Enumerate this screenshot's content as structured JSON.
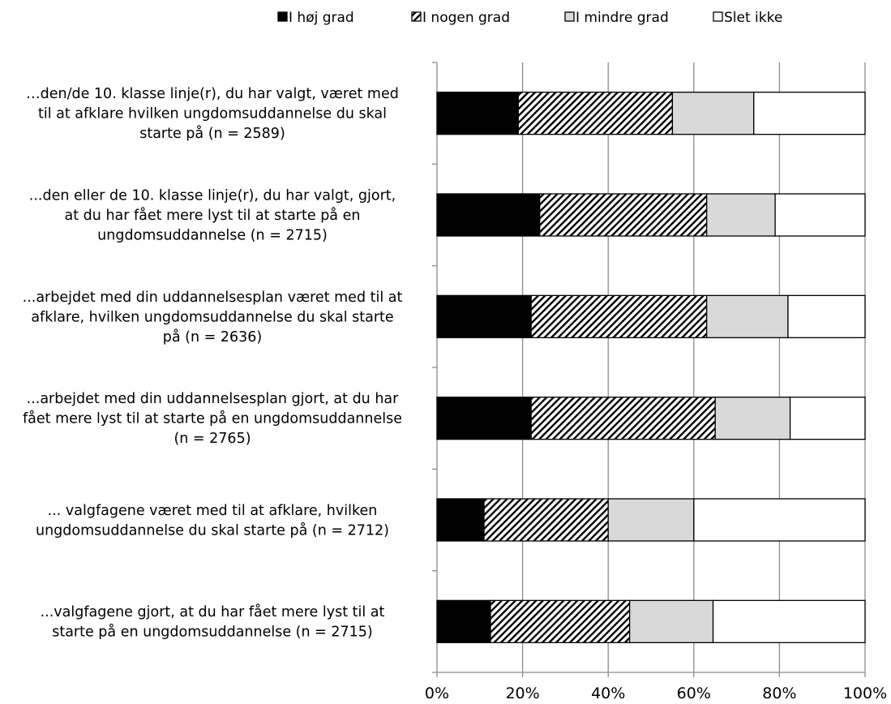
{
  "chart_data": {
    "type": "bar",
    "orientation": "horizontal",
    "stacked": "percent",
    "categories": [
      [
        "…den/de 10. klasse linje(r), du har valgt, været med",
        "til at afklare hvilken ungdomsuddannelse du skal",
        "starte på (n = 2589)"
      ],
      [
        "...den eller de 10. klasse linje(r), du har valgt, gjort,",
        "at du har fået mere lyst til at starte på en",
        "ungdomsuddannelse (n = 2715)"
      ],
      [
        "...arbejdet med din uddannelsesplan været med til at",
        "afklare, hvilken ungdomsuddannelse du skal starte",
        "på (n = 2636)"
      ],
      [
        "...arbejdet med din uddannelsesplan gjort, at du har",
        "fået mere lyst til at starte på en ungdomsuddannelse",
        "(n = 2765)"
      ],
      [
        "... valgfagene været med til at afklare, hvilken",
        "ungdomsuddannelse du skal starte på (n = 2712)"
      ],
      [
        "...valgfagene gjort, at du har fået mere lyst til at",
        "starte på en ungdomsuddannelse (n = 2715)"
      ]
    ],
    "series": [
      {
        "name": "I høj grad",
        "values": [
          19,
          24,
          22,
          22,
          11,
          12.5
        ],
        "color": "#000000",
        "pattern": "solid"
      },
      {
        "name": "I nogen grad",
        "values": [
          36,
          39,
          41,
          43,
          29,
          32.5
        ],
        "color": "#000000",
        "pattern": "diagonal-hatch"
      },
      {
        "name": "I mindre grad",
        "values": [
          19,
          16,
          19,
          17.5,
          20,
          19.5
        ],
        "color": "#d9d9d9",
        "pattern": "solid"
      },
      {
        "name": "Slet ikke",
        "values": [
          26,
          21,
          18,
          17.5,
          40,
          35.5
        ],
        "color": "#ffffff",
        "pattern": "solid"
      }
    ],
    "x_ticks": [
      "0%",
      "20%",
      "40%",
      "60%",
      "80%",
      "100%"
    ],
    "xlim": [
      0,
      100
    ],
    "grid": true,
    "legend_position": "top"
  }
}
